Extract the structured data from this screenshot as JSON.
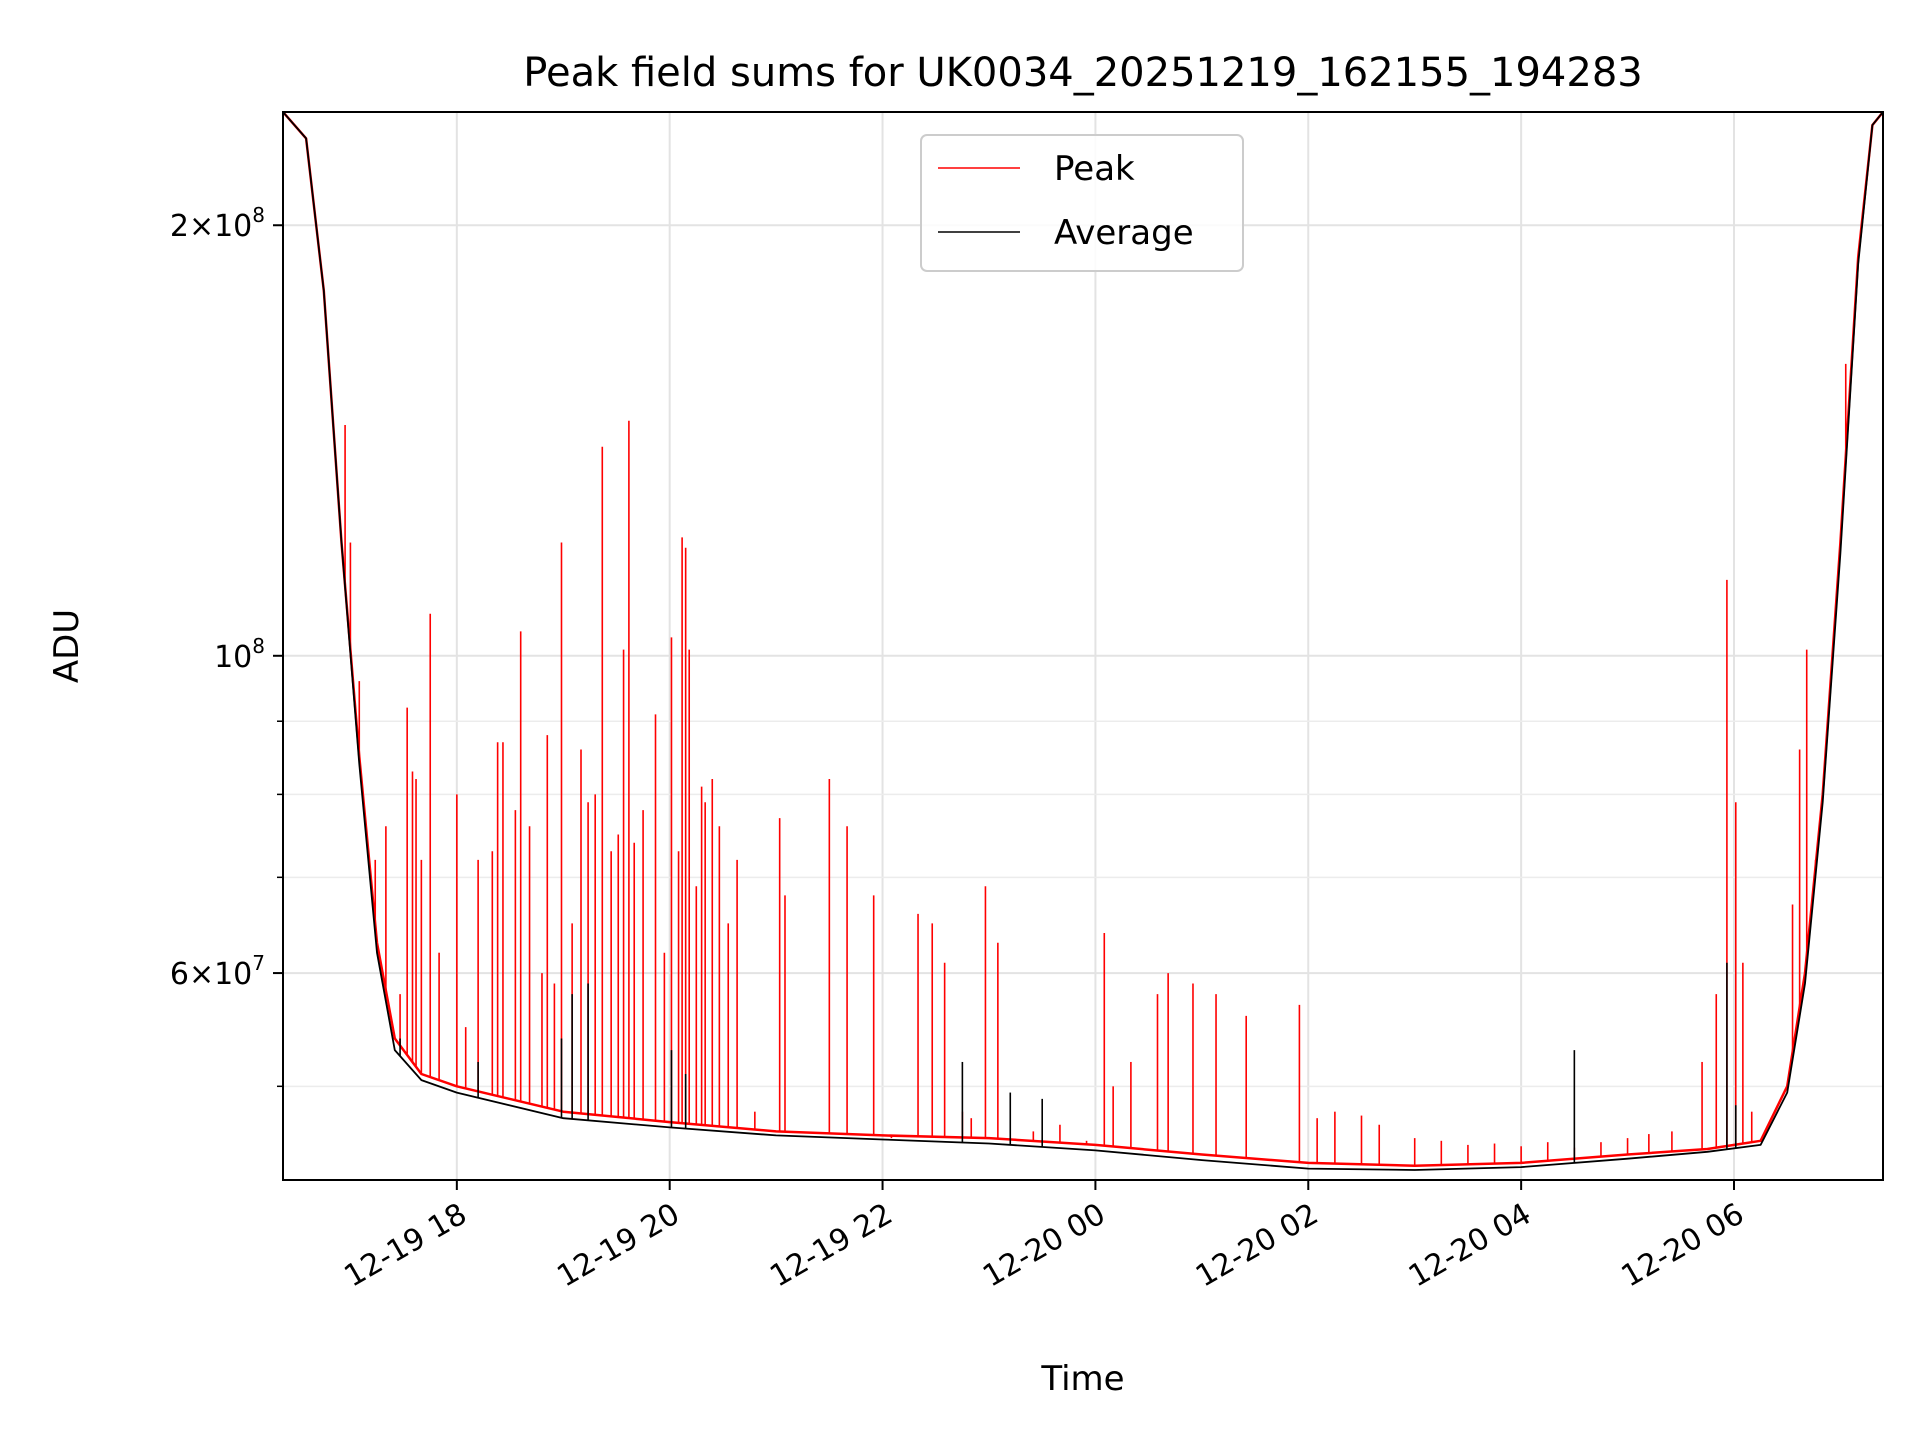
{
  "chart_data": {
    "type": "line",
    "title": "Peak field sums for UK0034_20251219_162155_194283",
    "xlabel": "Time",
    "ylabel": "ADU",
    "yscale": "log",
    "ylim": [
      43000000,
      240000000
    ],
    "xlim": [
      "2025-12-19 16:22",
      "2025-12-20 07:24"
    ],
    "x_ticks": [
      {
        "t": "2025-12-19 18:00",
        "label": "12-19 18"
      },
      {
        "t": "2025-12-19 20:00",
        "label": "12-19 20"
      },
      {
        "t": "2025-12-19 22:00",
        "label": "12-19 22"
      },
      {
        "t": "2025-12-20 00:00",
        "label": "12-20 00"
      },
      {
        "t": "2025-12-20 02:00",
        "label": "12-20 02"
      },
      {
        "t": "2025-12-20 04:00",
        "label": "12-20 04"
      },
      {
        "t": "2025-12-20 06:00",
        "label": "12-20 06"
      }
    ],
    "y_ticks_major": [
      {
        "v": 60000000,
        "label_mant": "6",
        "label_exp": "7"
      },
      {
        "v": 100000000,
        "label_mant": "10",
        "label_exp": "8"
      },
      {
        "v": 200000000,
        "label_mant": "2",
        "label_exp": "8"
      }
    ],
    "y_ticks_minor": [
      50000000,
      70000000,
      80000000,
      90000000
    ],
    "grid": true,
    "legend_position": "top-center",
    "series": [
      {
        "name": "Peak",
        "color": "#ff0000",
        "baseline": [
          [
            "2025-12-19 16:22",
            240000000
          ],
          [
            "2025-12-19 16:35",
            230000000
          ],
          [
            "2025-12-19 16:45",
            180000000
          ],
          [
            "2025-12-19 16:55",
            120000000
          ],
          [
            "2025-12-19 17:05",
            85000000
          ],
          [
            "2025-12-19 17:15",
            63000000
          ],
          [
            "2025-12-19 17:25",
            54000000
          ],
          [
            "2025-12-19 17:40",
            51000000
          ],
          [
            "2025-12-19 18:00",
            50000000
          ],
          [
            "2025-12-19 19:00",
            48000000
          ],
          [
            "2025-12-19 20:00",
            47200000
          ],
          [
            "2025-12-19 21:00",
            46500000
          ],
          [
            "2025-12-19 22:00",
            46200000
          ],
          [
            "2025-12-19 23:00",
            46000000
          ],
          [
            "2025-12-20 00:00",
            45500000
          ],
          [
            "2025-12-20 01:00",
            44800000
          ],
          [
            "2025-12-20 02:00",
            44200000
          ],
          [
            "2025-12-20 03:00",
            44000000
          ],
          [
            "2025-12-20 04:00",
            44200000
          ],
          [
            "2025-12-20 05:00",
            44800000
          ],
          [
            "2025-12-20 05:45",
            45200000
          ],
          [
            "2025-12-20 06:15",
            45800000
          ],
          [
            "2025-12-20 06:30",
            50000000
          ],
          [
            "2025-12-20 06:40",
            60000000
          ],
          [
            "2025-12-20 06:50",
            80000000
          ],
          [
            "2025-12-20 07:00",
            120000000
          ],
          [
            "2025-12-20 07:10",
            190000000
          ],
          [
            "2025-12-20 07:18",
            235000000
          ],
          [
            "2025-12-20 07:24",
            240000000
          ]
        ],
        "spikes": [
          [
            "2025-12-19 16:57",
            145000000
          ],
          [
            "2025-12-19 17:00",
            120000000
          ],
          [
            "2025-12-19 17:05",
            96000000
          ],
          [
            "2025-12-19 17:14",
            72000000
          ],
          [
            "2025-12-19 17:20",
            76000000
          ],
          [
            "2025-12-19 17:28",
            58000000
          ],
          [
            "2025-12-19 17:32",
            92000000
          ],
          [
            "2025-12-19 17:35",
            83000000
          ],
          [
            "2025-12-19 17:37",
            82000000
          ],
          [
            "2025-12-19 17:40",
            72000000
          ],
          [
            "2025-12-19 17:45",
            107000000
          ],
          [
            "2025-12-19 17:50",
            62000000
          ],
          [
            "2025-12-19 18:00",
            80000000
          ],
          [
            "2025-12-19 18:05",
            55000000
          ],
          [
            "2025-12-19 18:12",
            72000000
          ],
          [
            "2025-12-19 18:20",
            73000000
          ],
          [
            "2025-12-19 18:23",
            87000000
          ],
          [
            "2025-12-19 18:26",
            87000000
          ],
          [
            "2025-12-19 18:33",
            78000000
          ],
          [
            "2025-12-19 18:36",
            104000000
          ],
          [
            "2025-12-19 18:41",
            76000000
          ],
          [
            "2025-12-19 18:48",
            60000000
          ],
          [
            "2025-12-19 18:51",
            88000000
          ],
          [
            "2025-12-19 18:55",
            59000000
          ],
          [
            "2025-12-19 18:59",
            120000000
          ],
          [
            "2025-12-19 19:05",
            65000000
          ],
          [
            "2025-12-19 19:10",
            86000000
          ],
          [
            "2025-12-19 19:14",
            79000000
          ],
          [
            "2025-12-19 19:18",
            80000000
          ],
          [
            "2025-12-19 19:22",
            140000000
          ],
          [
            "2025-12-19 19:27",
            73000000
          ],
          [
            "2025-12-19 19:31",
            75000000
          ],
          [
            "2025-12-19 19:34",
            101000000
          ],
          [
            "2025-12-19 19:37",
            146000000
          ],
          [
            "2025-12-19 19:40",
            74000000
          ],
          [
            "2025-12-19 19:45",
            78000000
          ],
          [
            "2025-12-19 19:52",
            91000000
          ],
          [
            "2025-12-19 19:57",
            62000000
          ],
          [
            "2025-12-19 20:01",
            103000000
          ],
          [
            "2025-12-19 20:05",
            73000000
          ],
          [
            "2025-12-19 20:07",
            121000000
          ],
          [
            "2025-12-19 20:09",
            119000000
          ],
          [
            "2025-12-19 20:11",
            101000000
          ],
          [
            "2025-12-19 20:15",
            69000000
          ],
          [
            "2025-12-19 20:18",
            81000000
          ],
          [
            "2025-12-19 20:20",
            79000000
          ],
          [
            "2025-12-19 20:24",
            82000000
          ],
          [
            "2025-12-19 20:28",
            76000000
          ],
          [
            "2025-12-19 20:33",
            65000000
          ],
          [
            "2025-12-19 20:38",
            72000000
          ],
          [
            "2025-12-19 20:48",
            48000000
          ],
          [
            "2025-12-19 21:02",
            77000000
          ],
          [
            "2025-12-19 21:05",
            68000000
          ],
          [
            "2025-12-19 21:30",
            82000000
          ],
          [
            "2025-12-19 21:40",
            76000000
          ],
          [
            "2025-12-19 21:55",
            68000000
          ],
          [
            "2025-12-19 22:05",
            46000000
          ],
          [
            "2025-12-19 22:20",
            66000000
          ],
          [
            "2025-12-19 22:28",
            65000000
          ],
          [
            "2025-12-19 22:35",
            61000000
          ],
          [
            "2025-12-19 22:45",
            48000000
          ],
          [
            "2025-12-19 22:50",
            47500000
          ],
          [
            "2025-12-19 22:58",
            69000000
          ],
          [
            "2025-12-19 23:05",
            63000000
          ],
          [
            "2025-12-19 23:12",
            46000000
          ],
          [
            "2025-12-19 23:25",
            46500000
          ],
          [
            "2025-12-19 23:40",
            47000000
          ],
          [
            "2025-12-19 23:55",
            45800000
          ],
          [
            "2025-12-20 00:05",
            64000000
          ],
          [
            "2025-12-20 00:10",
            50000000
          ],
          [
            "2025-12-20 00:20",
            52000000
          ],
          [
            "2025-12-20 00:35",
            58000000
          ],
          [
            "2025-12-20 00:41",
            60000000
          ],
          [
            "2025-12-20 00:55",
            59000000
          ],
          [
            "2025-12-20 01:08",
            58000000
          ],
          [
            "2025-12-20 01:25",
            56000000
          ],
          [
            "2025-12-20 01:55",
            57000000
          ],
          [
            "2025-12-20 02:05",
            47500000
          ],
          [
            "2025-12-20 02:15",
            48000000
          ],
          [
            "2025-12-20 02:30",
            47700000
          ],
          [
            "2025-12-20 02:40",
            47000000
          ],
          [
            "2025-12-20 03:00",
            46000000
          ],
          [
            "2025-12-20 03:15",
            45800000
          ],
          [
            "2025-12-20 03:30",
            45500000
          ],
          [
            "2025-12-20 03:45",
            45600000
          ],
          [
            "2025-12-20 04:00",
            45400000
          ],
          [
            "2025-12-20 04:15",
            45700000
          ],
          [
            "2025-12-20 04:30",
            45300000
          ],
          [
            "2025-12-20 04:45",
            45700000
          ],
          [
            "2025-12-20 05:00",
            46000000
          ],
          [
            "2025-12-20 05:12",
            46300000
          ],
          [
            "2025-12-20 05:25",
            46500000
          ],
          [
            "2025-12-20 05:42",
            52000000
          ],
          [
            "2025-12-20 05:50",
            58000000
          ],
          [
            "2025-12-20 05:56",
            113000000
          ],
          [
            "2025-12-20 06:01",
            79000000
          ],
          [
            "2025-12-20 06:05",
            61000000
          ],
          [
            "2025-12-20 06:10",
            48000000
          ],
          [
            "2025-12-20 06:33",
            67000000
          ],
          [
            "2025-12-20 06:37",
            86000000
          ],
          [
            "2025-12-20 06:41",
            101000000
          ],
          [
            "2025-12-20 06:46",
            72000000
          ],
          [
            "2025-12-20 07:03",
            160000000
          ]
        ]
      },
      {
        "name": "Average",
        "color": "#000000",
        "baseline": [
          [
            "2025-12-19 16:22",
            240000000
          ],
          [
            "2025-12-19 16:35",
            230000000
          ],
          [
            "2025-12-19 16:45",
            180000000
          ],
          [
            "2025-12-19 16:55",
            120000000
          ],
          [
            "2025-12-19 17:05",
            84000000
          ],
          [
            "2025-12-19 17:15",
            62000000
          ],
          [
            "2025-12-19 17:25",
            53000000
          ],
          [
            "2025-12-19 17:40",
            50500000
          ],
          [
            "2025-12-19 18:00",
            49500000
          ],
          [
            "2025-12-19 19:00",
            47500000
          ],
          [
            "2025-12-19 20:00",
            46800000
          ],
          [
            "2025-12-19 21:00",
            46200000
          ],
          [
            "2025-12-19 22:00",
            45900000
          ],
          [
            "2025-12-19 23:00",
            45600000
          ],
          [
            "2025-12-20 00:00",
            45100000
          ],
          [
            "2025-12-20 01:00",
            44400000
          ],
          [
            "2025-12-20 02:00",
            43800000
          ],
          [
            "2025-12-20 03:00",
            43700000
          ],
          [
            "2025-12-20 04:00",
            43900000
          ],
          [
            "2025-12-20 05:00",
            44500000
          ],
          [
            "2025-12-20 05:45",
            45000000
          ],
          [
            "2025-12-20 06:15",
            45500000
          ],
          [
            "2025-12-20 06:30",
            49500000
          ],
          [
            "2025-12-20 06:40",
            59000000
          ],
          [
            "2025-12-20 06:50",
            79000000
          ],
          [
            "2025-12-20 07:00",
            118000000
          ],
          [
            "2025-12-20 07:10",
            188000000
          ],
          [
            "2025-12-20 07:18",
            235000000
          ],
          [
            "2025-12-20 07:24",
            240000000
          ]
        ],
        "spikes": [
          [
            "2025-12-19 17:28",
            54000000
          ],
          [
            "2025-12-19 18:12",
            52000000
          ],
          [
            "2025-12-19 18:59",
            54000000
          ],
          [
            "2025-12-19 19:05",
            58000000
          ],
          [
            "2025-12-19 19:14",
            59000000
          ],
          [
            "2025-12-19 20:01",
            53000000
          ],
          [
            "2025-12-19 20:09",
            51000000
          ],
          [
            "2025-12-19 22:45",
            52000000
          ],
          [
            "2025-12-19 23:12",
            49500000
          ],
          [
            "2025-12-19 23:30",
            49000000
          ],
          [
            "2025-12-20 04:30",
            53000000
          ],
          [
            "2025-12-20 05:56",
            61000000
          ],
          [
            "2025-12-20 06:01",
            48500000
          ]
        ]
      }
    ]
  }
}
